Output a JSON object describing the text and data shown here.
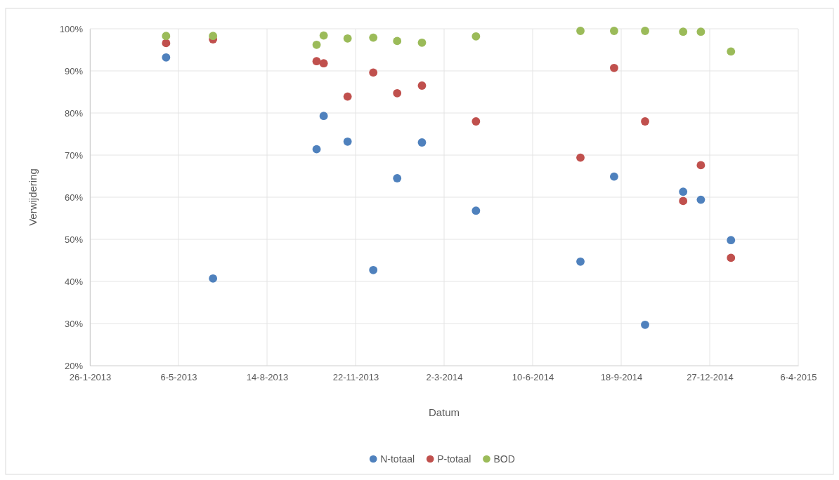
{
  "chart_data": {
    "type": "scatter",
    "xlabel": "Datum",
    "ylabel": "Verwijdering",
    "x": [
      "2013-04-22",
      "2013-06-14",
      "2013-10-09",
      "2013-10-17",
      "2013-11-13",
      "2013-12-12",
      "2014-01-08",
      "2014-02-05",
      "2014-04-07",
      "2014-08-03",
      "2014-09-10",
      "2014-10-15",
      "2014-11-27",
      "2014-12-17",
      "2015-01-20"
    ],
    "series": [
      {
        "name": "N-totaal",
        "color": "#4f81bd",
        "values": [
          93.2,
          40.7,
          71.4,
          79.3,
          73.2,
          42.7,
          64.5,
          73.0,
          56.8,
          44.7,
          64.9,
          29.7,
          61.3,
          59.4,
          49.8
        ]
      },
      {
        "name": "P-totaal",
        "color": "#c0504d",
        "values": [
          96.6,
          97.5,
          92.3,
          91.8,
          83.9,
          89.6,
          84.7,
          86.5,
          78.0,
          69.4,
          90.7,
          78.0,
          59.1,
          67.6,
          45.6
        ]
      },
      {
        "name": "BOD",
        "color": "#9bbb59",
        "values": [
          98.3,
          98.3,
          96.2,
          98.4,
          97.7,
          97.9,
          97.1,
          96.7,
          98.2,
          99.5,
          99.5,
          99.5,
          99.3,
          99.3,
          94.6
        ]
      }
    ],
    "xlim": [
      "2013-01-26",
      "2015-04-06"
    ],
    "xticks": [
      {
        "value": "2013-01-26",
        "label": "26-1-2013"
      },
      {
        "value": "2013-05-06",
        "label": "6-5-2013"
      },
      {
        "value": "2013-08-14",
        "label": "14-8-2013"
      },
      {
        "value": "2013-11-22",
        "label": "22-11-2013"
      },
      {
        "value": "2014-03-02",
        "label": "2-3-2014"
      },
      {
        "value": "2014-06-10",
        "label": "10-6-2014"
      },
      {
        "value": "2014-09-18",
        "label": "18-9-2014"
      },
      {
        "value": "2014-12-27",
        "label": "27-12-2014"
      },
      {
        "value": "2015-04-06",
        "label": "6-4-2015"
      }
    ],
    "ylim": [
      20,
      100
    ],
    "yticks": [
      {
        "value": 20,
        "label": "20%"
      },
      {
        "value": 30,
        "label": "30%"
      },
      {
        "value": 40,
        "label": "40%"
      },
      {
        "value": 50,
        "label": "50%"
      },
      {
        "value": 60,
        "label": "60%"
      },
      {
        "value": 70,
        "label": "70%"
      },
      {
        "value": 80,
        "label": "80%"
      },
      {
        "value": 90,
        "label": "90%"
      },
      {
        "value": 100,
        "label": "100%"
      }
    ],
    "grid": true,
    "legend": "bottom",
    "marker": "circle"
  }
}
